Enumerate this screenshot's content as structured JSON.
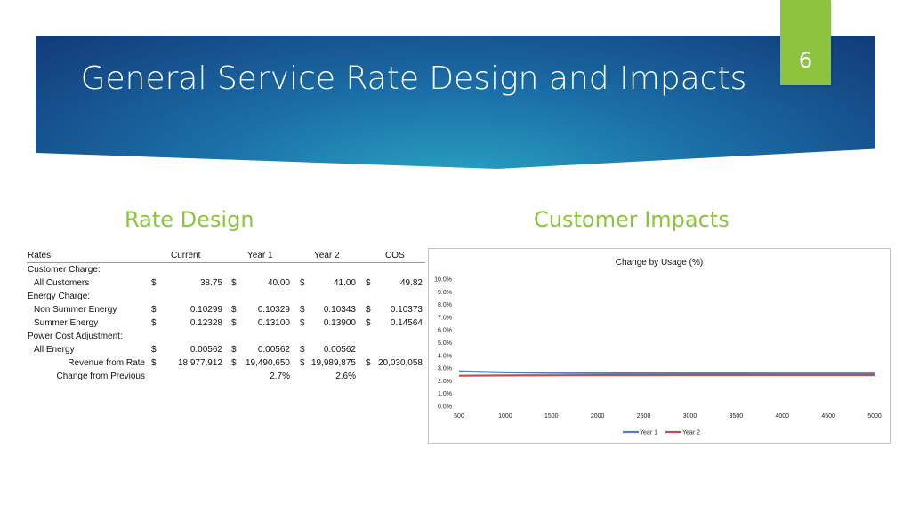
{
  "slide": {
    "title": "General Service Rate Design and Impacts",
    "page_number": "6"
  },
  "left_heading": "Rate Design",
  "right_heading": "Customer Impacts",
  "table": {
    "headers": [
      "Rates",
      "Current",
      "Year 1",
      "Year 2",
      "COS"
    ],
    "rows": [
      {
        "label": "Customer Charge:",
        "indent": false,
        "cells": []
      },
      {
        "label": "All Customers",
        "indent": true,
        "cells": [
          [
            "$",
            "38.75"
          ],
          [
            "$",
            "40.00"
          ],
          [
            "$",
            "41.00"
          ],
          [
            "$",
            "49.82"
          ]
        ]
      },
      {
        "label": "Energy Charge:",
        "indent": false,
        "cells": []
      },
      {
        "label": "Non Summer Energy",
        "indent": true,
        "cells": [
          [
            "$",
            "0.10299"
          ],
          [
            "$",
            "0.10329"
          ],
          [
            "$",
            "0.10343"
          ],
          [
            "$",
            "0.10373"
          ]
        ]
      },
      {
        "label": "Summer Energy",
        "indent": true,
        "cells": [
          [
            "$",
            "0.12328"
          ],
          [
            "$",
            "0.13100"
          ],
          [
            "$",
            "0.13900"
          ],
          [
            "$",
            "0.14564"
          ]
        ]
      },
      {
        "label": "Power Cost Adjustment:",
        "indent": false,
        "cells": []
      },
      {
        "label": "All Energy",
        "indent": true,
        "cells": [
          [
            "$",
            "0.00562"
          ],
          [
            "$",
            "0.00562"
          ],
          [
            "$",
            "0.00562"
          ],
          [
            "",
            ""
          ]
        ]
      },
      {
        "label": "Revenue from Rate",
        "indent": "right",
        "cells": [
          [
            "$",
            "18,977,912"
          ],
          [
            "$",
            "19,490,650"
          ],
          [
            "$",
            "19,989,875"
          ],
          [
            "$",
            "20,030,058"
          ]
        ]
      },
      {
        "label": "Change from Previous",
        "indent": "right",
        "cells": [
          [
            "",
            ""
          ],
          [
            "",
            "2.7%"
          ],
          [
            "",
            "2.6%"
          ],
          [
            "",
            ""
          ]
        ]
      }
    ]
  },
  "chart_data": {
    "type": "line",
    "title": "Change by Usage (%)",
    "x": [
      500,
      1000,
      1500,
      2000,
      2500,
      3000,
      3500,
      4000,
      4500,
      5000
    ],
    "x_tick_labels": [
      "500",
      "1000",
      "1500",
      "2000",
      "2500",
      "3000",
      "3500",
      "4000",
      "4500",
      "5000"
    ],
    "ylim": [
      0,
      10
    ],
    "y_tick_labels": [
      "0.0%",
      "1.0%",
      "2.0%",
      "3.0%",
      "4.0%",
      "5.0%",
      "6.0%",
      "7.0%",
      "8.0%",
      "9.0%",
      "10.0%"
    ],
    "series": [
      {
        "name": "Year 1",
        "color": "#4f81bd",
        "values": [
          2.75,
          2.66,
          2.62,
          2.6,
          2.59,
          2.58,
          2.58,
          2.57,
          2.57,
          2.57
        ]
      },
      {
        "name": "Year 2",
        "color": "#c0504d",
        "values": [
          2.4,
          2.42,
          2.43,
          2.44,
          2.44,
          2.45,
          2.45,
          2.45,
          2.45,
          2.45
        ]
      }
    ],
    "legend_position": "bottom",
    "grid": false
  }
}
